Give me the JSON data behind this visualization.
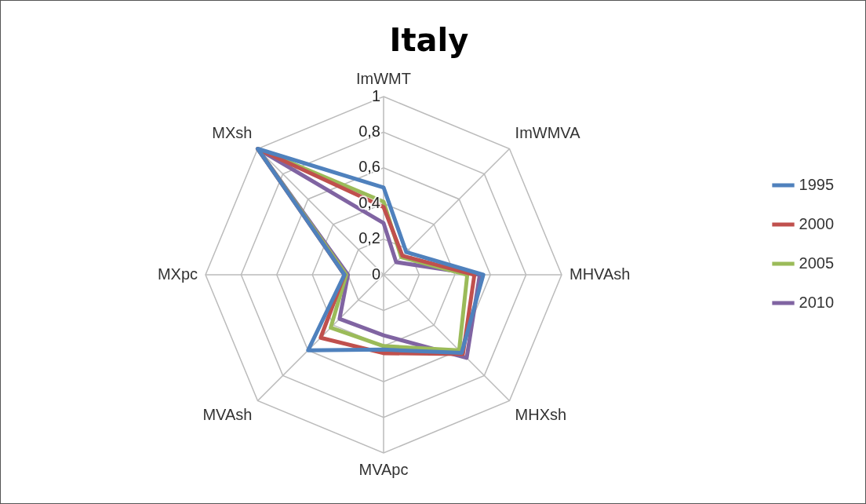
{
  "chart_data": {
    "type": "radar",
    "title": "Italy",
    "categories": [
      "ImWMT",
      "ImWMVA",
      "MHVAsh",
      "MHXsh",
      "MVApc",
      "MVAsh",
      "MXpc",
      "MXsh"
    ],
    "ylim": [
      0,
      1
    ],
    "yticks": [
      0,
      {
        "value": 0.2,
        "label": "0,2"
      },
      {
        "value": 0.4,
        "label": "0,4"
      },
      {
        "value": 0.6,
        "label": "0,6"
      },
      {
        "value": 0.8,
        "label": "0,8"
      },
      1
    ],
    "grid": true,
    "legend": "right",
    "marker": "none",
    "series": [
      {
        "name": "1995",
        "color": "#4f81bd",
        "values": [
          0.49,
          0.18,
          0.56,
          0.62,
          0.42,
          0.6,
          0.22,
          1
        ]
      },
      {
        "name": "2000",
        "color": "#c0504d",
        "values": [
          0.38,
          0.15,
          0.51,
          0.63,
          0.44,
          0.5,
          0.22,
          1
        ]
      },
      {
        "name": "2005",
        "color": "#9bbb59",
        "values": [
          0.41,
          0.14,
          0.47,
          0.6,
          0.4,
          0.42,
          0.21,
          1
        ]
      },
      {
        "name": "2010",
        "color": "#8064a2",
        "values": [
          0.29,
          0.1,
          0.54,
          0.66,
          0.34,
          0.35,
          0.2,
          1
        ]
      }
    ]
  }
}
